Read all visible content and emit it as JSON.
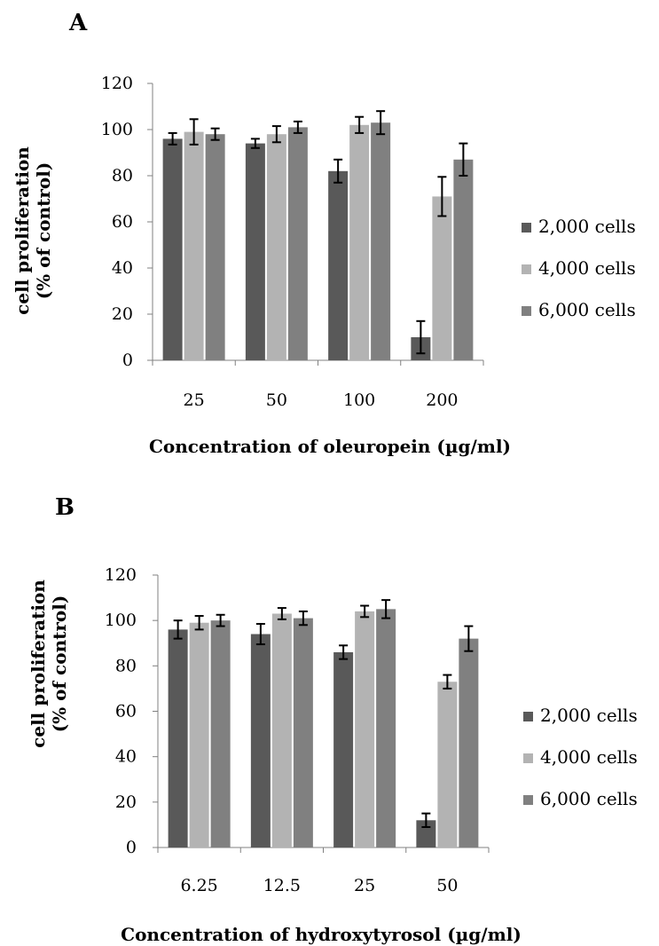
{
  "chart_data": [
    {
      "type": "bar",
      "panel_label": "A",
      "title": "",
      "xlabel": "Concentration of oleuropein (µg/ml)",
      "ylabel_line1": "cell proliferation",
      "ylabel_line2": "(% of control)",
      "ylim": [
        0,
        120
      ],
      "yticks": [
        "0",
        "20",
        "40",
        "60",
        "80",
        "100",
        "120"
      ],
      "ytick_values": [
        0,
        20,
        40,
        60,
        80,
        100,
        120
      ],
      "categories": [
        "25",
        "50",
        "100",
        "200"
      ],
      "grid": false,
      "legend_position": "right",
      "series": [
        {
          "name": "2,000 cells",
          "color": "#595959",
          "values": [
            96,
            94,
            82,
            10
          ],
          "errors": [
            2.5,
            2,
            5,
            7
          ]
        },
        {
          "name": "4,000 cells",
          "color": "#b3b3b3",
          "values": [
            99,
            98,
            102,
            71
          ],
          "errors": [
            5.5,
            3.5,
            3.5,
            8.5
          ]
        },
        {
          "name": "6,000 cells",
          "color": "#808080",
          "values": [
            98,
            101,
            103,
            87
          ],
          "errors": [
            2.5,
            2.5,
            5,
            7
          ]
        }
      ]
    },
    {
      "type": "bar",
      "panel_label": "B",
      "title": "",
      "xlabel": "Concentration of hydroxytyrosol (µg/ml)",
      "ylabel_line1": "cell proliferation",
      "ylabel_line2": "(% of control)",
      "ylim": [
        0,
        120
      ],
      "yticks": [
        "0",
        "20",
        "40",
        "60",
        "80",
        "100",
        "120"
      ],
      "ytick_values": [
        0,
        20,
        40,
        60,
        80,
        100,
        120
      ],
      "categories": [
        "6.25",
        "12.5",
        "25",
        "50"
      ],
      "grid": false,
      "legend_position": "right",
      "series": [
        {
          "name": "2,000 cells",
          "color": "#595959",
          "values": [
            96,
            94,
            86,
            12
          ],
          "errors": [
            4,
            4.5,
            3,
            3
          ]
        },
        {
          "name": "4,000 cells",
          "color": "#b3b3b3",
          "values": [
            99,
            103,
            104,
            73
          ],
          "errors": [
            3,
            2.5,
            2.5,
            3
          ]
        },
        {
          "name": "6,000 cells",
          "color": "#808080",
          "values": [
            100,
            101,
            105,
            92
          ],
          "errors": [
            2.5,
            3,
            4,
            5.5
          ]
        }
      ]
    }
  ]
}
